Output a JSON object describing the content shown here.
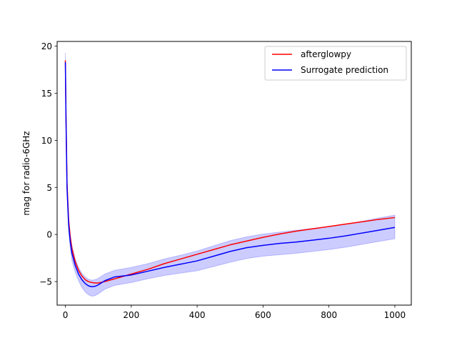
{
  "chart_data": {
    "type": "line",
    "title": "",
    "xlabel": "",
    "ylabel": "mag for radio-6GHz",
    "xlim": [
      -25,
      1050
    ],
    "ylim": [
      20.5,
      -7.5
    ],
    "y_inverted": true,
    "xticks": [
      0,
      200,
      400,
      600,
      800,
      1000
    ],
    "yticks": [
      -5,
      0,
      5,
      10,
      15,
      20
    ],
    "grid": false,
    "legend_position": "top-right",
    "colors": {
      "afterglowpy": "#ff0000",
      "surrogate": "#0000ff",
      "band": "#0000ff"
    },
    "series": [
      {
        "name": "afterglowpy",
        "color": "#ff0000",
        "x": [
          0,
          2,
          5,
          10,
          15,
          20,
          30,
          40,
          50,
          60,
          70,
          80,
          90,
          100,
          120,
          150,
          200,
          250,
          300,
          350,
          400,
          450,
          500,
          550,
          600,
          650,
          700,
          750,
          800,
          850,
          900,
          950,
          1000
        ],
        "y": [
          18.5,
          12.5,
          5.5,
          1.5,
          -0.3,
          -1.5,
          -2.9,
          -3.8,
          -4.4,
          -4.8,
          -5.0,
          -5.1,
          -5.15,
          -5.15,
          -5.0,
          -4.7,
          -4.2,
          -3.7,
          -3.1,
          -2.6,
          -2.1,
          -1.6,
          -1.1,
          -0.7,
          -0.3,
          0.05,
          0.35,
          0.6,
          0.85,
          1.1,
          1.35,
          1.6,
          1.8
        ]
      },
      {
        "name": "Surrogate prediction",
        "color": "#0000ff",
        "x": [
          0,
          2,
          5,
          10,
          15,
          20,
          30,
          40,
          50,
          60,
          70,
          80,
          90,
          100,
          120,
          150,
          200,
          250,
          300,
          350,
          400,
          450,
          500,
          550,
          600,
          650,
          700,
          750,
          800,
          850,
          900,
          950,
          1000
        ],
        "y": [
          18.3,
          12.0,
          5.0,
          1.0,
          -0.8,
          -2.0,
          -3.3,
          -4.2,
          -4.8,
          -5.2,
          -5.45,
          -5.55,
          -5.5,
          -5.35,
          -4.9,
          -4.5,
          -4.3,
          -3.9,
          -3.5,
          -3.15,
          -2.8,
          -2.3,
          -1.8,
          -1.4,
          -1.15,
          -0.95,
          -0.8,
          -0.6,
          -0.4,
          -0.15,
          0.15,
          0.45,
          0.75
        ]
      }
    ],
    "band": {
      "x": [
        0,
        2,
        5,
        10,
        15,
        20,
        30,
        40,
        50,
        60,
        70,
        80,
        90,
        100,
        120,
        150,
        200,
        250,
        300,
        350,
        400,
        450,
        500,
        550,
        600,
        650,
        700,
        750,
        800,
        850,
        900,
        950,
        1000
      ],
      "upper": [
        19.3,
        12.8,
        5.6,
        1.6,
        -0.1,
        -1.2,
        -2.6,
        -3.5,
        -4.1,
        -4.5,
        -4.75,
        -4.85,
        -4.8,
        -4.65,
        -4.2,
        -3.8,
        -3.5,
        -3.1,
        -2.6,
        -2.2,
        -1.75,
        -1.2,
        -0.65,
        -0.25,
        0.05,
        0.25,
        0.45,
        0.65,
        0.85,
        1.1,
        1.4,
        1.75,
        2.05
      ],
      "lower": [
        17.6,
        11.3,
        4.4,
        0.3,
        -1.5,
        -2.8,
        -4.0,
        -4.9,
        -5.6,
        -6.1,
        -6.4,
        -6.55,
        -6.5,
        -6.3,
        -5.8,
        -5.4,
        -5.1,
        -4.7,
        -4.35,
        -4.1,
        -3.85,
        -3.4,
        -2.95,
        -2.55,
        -2.3,
        -2.15,
        -2.0,
        -1.8,
        -1.6,
        -1.35,
        -1.05,
        -0.75,
        -0.45
      ]
    }
  }
}
